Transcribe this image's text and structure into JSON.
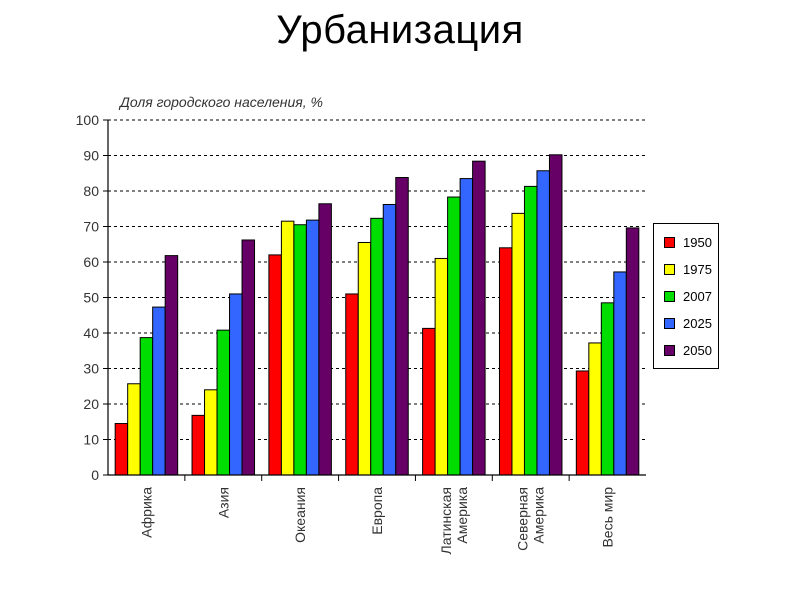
{
  "chart_data": {
    "type": "bar",
    "title": "Урбанизация",
    "ylabel": "Доля городского населения, %",
    "ylim": [
      0,
      100
    ],
    "yticks": [
      0,
      10,
      20,
      30,
      40,
      50,
      60,
      70,
      80,
      90,
      100
    ],
    "grid": "horizontal-dashed",
    "legend": "right",
    "categories": [
      [
        "Африка"
      ],
      [
        "Азия"
      ],
      [
        "Океания"
      ],
      [
        "Европа"
      ],
      [
        "Латинская",
        "Америка"
      ],
      [
        "Северная",
        "Америка"
      ],
      [
        "Весь мир"
      ]
    ],
    "series": [
      {
        "name": "1950",
        "color": "#ff0000",
        "values": [
          14.5,
          16.8,
          62.0,
          51.0,
          41.3,
          64.0,
          29.3
        ]
      },
      {
        "name": "1975",
        "color": "#ffff00",
        "values": [
          25.7,
          24.0,
          71.5,
          65.5,
          61.0,
          73.7,
          37.2
        ]
      },
      {
        "name": "2007",
        "color": "#00dd00",
        "values": [
          38.7,
          40.8,
          70.5,
          72.3,
          78.3,
          81.3,
          48.5
        ]
      },
      {
        "name": "2025",
        "color": "#3366ff",
        "values": [
          47.3,
          51.0,
          71.8,
          76.2,
          83.5,
          85.7,
          57.2
        ]
      },
      {
        "name": "2050",
        "color": "#660066",
        "values": [
          61.8,
          66.2,
          76.4,
          83.8,
          88.4,
          90.2,
          69.6
        ]
      }
    ]
  }
}
